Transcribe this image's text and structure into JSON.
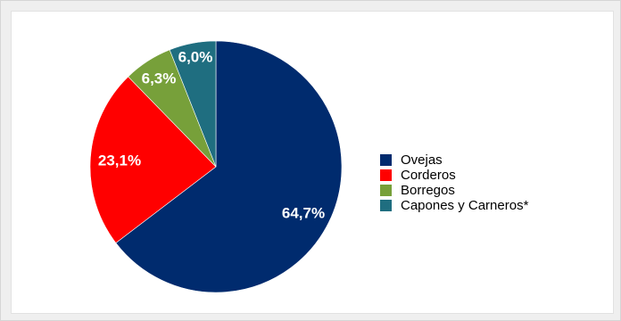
{
  "chart_data": {
    "type": "pie",
    "title": "",
    "legend_position": "right",
    "slices": [
      {
        "name": "Ovejas",
        "value": 64.7,
        "label": "64,7%",
        "color": "#002b6e"
      },
      {
        "name": "Corderos",
        "value": 23.1,
        "label": "23,1%",
        "color": "#ff0000"
      },
      {
        "name": "Borregos",
        "value": 6.3,
        "label": "6,3%",
        "color": "#77a03a"
      },
      {
        "name": "Capones y Carneros*",
        "value": 6.0,
        "label": "6,0%",
        "color": "#1f6e80"
      }
    ]
  }
}
